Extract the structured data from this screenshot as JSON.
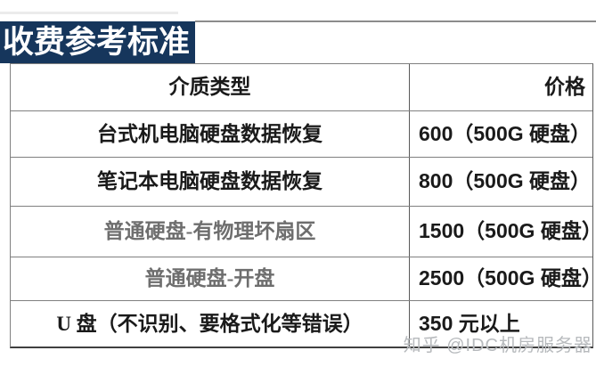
{
  "banner": {
    "title": "收费参考标准"
  },
  "table": {
    "columns": [
      "介质类型",
      "价格"
    ],
    "rows": [
      {
        "type": "台式机电脑硬盘数据恢复",
        "price": "600（500G 硬盘）"
      },
      {
        "type": "笔记本电脑硬盘数据恢复",
        "price": "800（500G 硬盘）"
      },
      {
        "type": "普通硬盘-有物理坏扇区",
        "price": "1500（500G 硬盘）"
      },
      {
        "type": "普通硬盘-开盘",
        "price": "2500（500G 硬盘）"
      },
      {
        "type": "U 盘（不识别、要格式化等错误）",
        "price": "350 元以上"
      }
    ]
  },
  "watermark": {
    "text": "知乎 @IDC机房服务器"
  },
  "colors": {
    "banner_bg": "#16365c",
    "banner_text": "#ffffff",
    "muted_text": "#6e6e6e",
    "grid_line": "#808080",
    "watermark_text": "#b7babd"
  }
}
